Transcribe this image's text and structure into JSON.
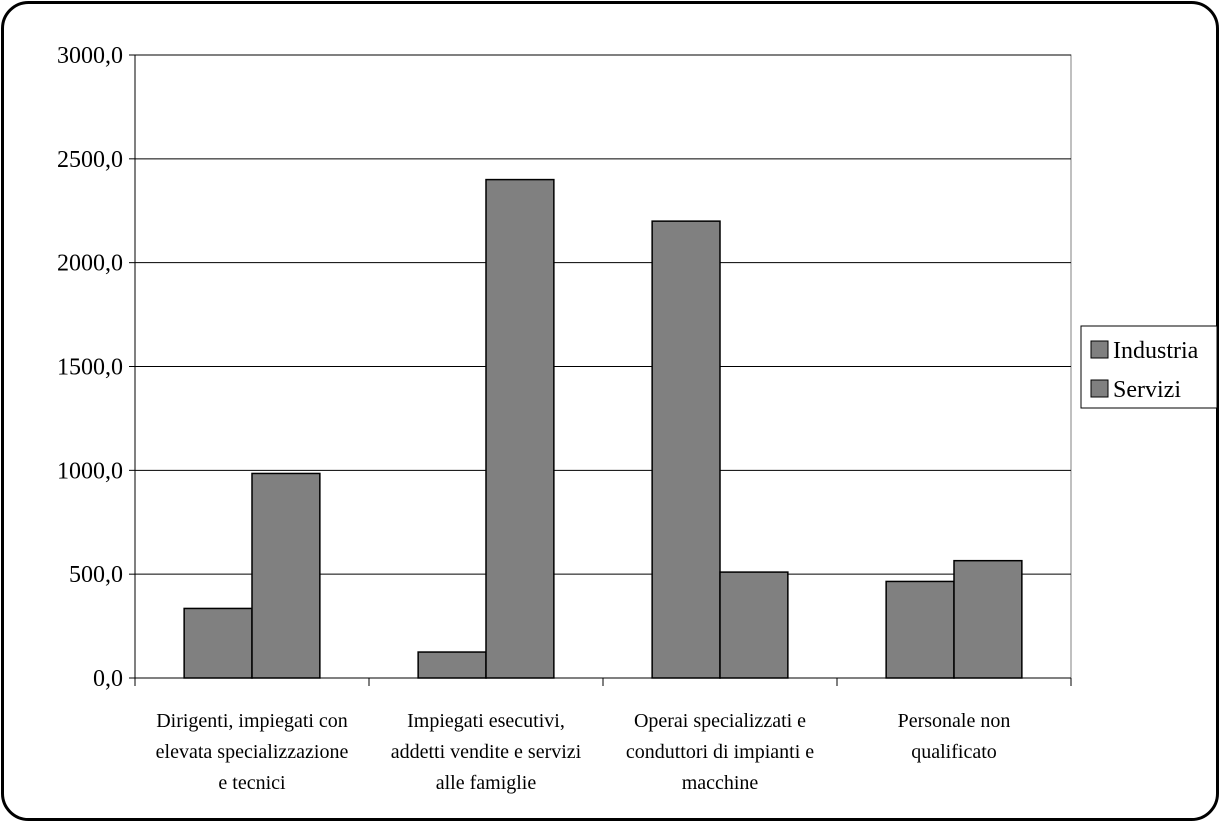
{
  "chart_data": {
    "type": "bar",
    "title": "",
    "xlabel": "",
    "ylabel": "",
    "categories": [
      [
        "Dirigenti, impiegati con",
        "elevata specializzazione",
        "e tecnici"
      ],
      [
        "Impiegati esecutivi,",
        "addetti vendite e servizi",
        "alle famiglie"
      ],
      [
        "Operai specializzati e",
        "conduttori di impianti e",
        "macchine"
      ],
      [
        "Personale non",
        "qualificato"
      ]
    ],
    "series": [
      {
        "name": "Industria",
        "values": [
          335,
          125,
          2200,
          465
        ],
        "color": "#808080"
      },
      {
        "name": "Servizi",
        "values": [
          985,
          2400,
          510,
          565
        ],
        "color": "#808080"
      }
    ],
    "ylim": [
      0,
      3000
    ],
    "yticks": [
      0,
      500,
      1000,
      1500,
      2000,
      2500,
      3000
    ],
    "ytick_labels": [
      "0,0",
      "500,0",
      "1000,0",
      "1500,0",
      "2000,0",
      "2500,0",
      "3000,0"
    ],
    "grid": true,
    "legend_position": "right"
  }
}
